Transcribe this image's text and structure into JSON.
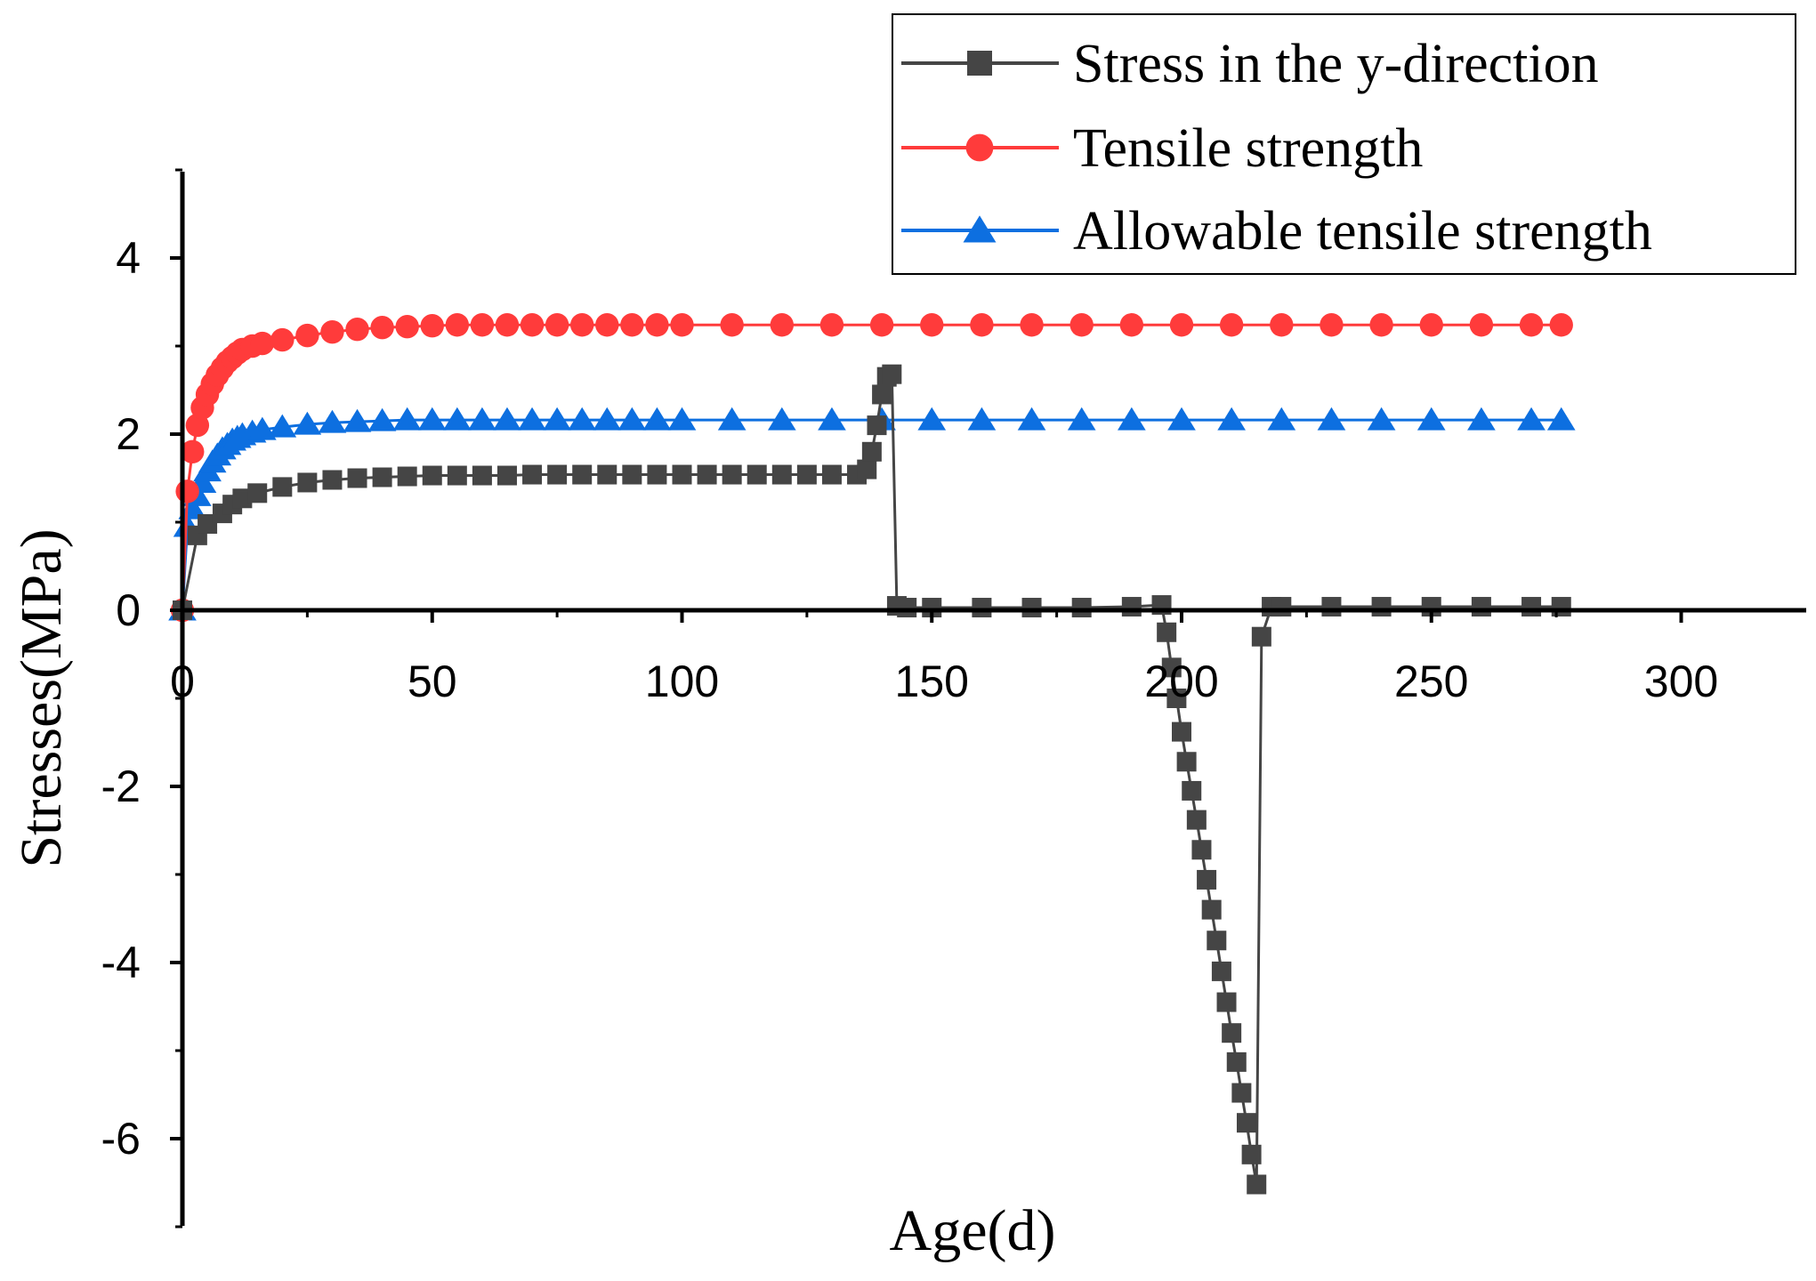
{
  "chart_data": {
    "type": "line",
    "title": "",
    "xlabel": "Age(d)",
    "ylabel": "Stresses(MPa)",
    "xlim": [
      0,
      325
    ],
    "ylim": [
      -7,
      5
    ],
    "xticks": [
      0,
      50,
      100,
      150,
      200,
      250,
      300
    ],
    "xtick_labels": [
      "0",
      "50",
      "100",
      "150",
      "200",
      "250",
      "300"
    ],
    "yticks": [
      -6,
      -4,
      -2,
      0,
      2,
      4
    ],
    "ytick_labels": [
      "-6",
      "-4",
      "-2",
      "0",
      "2",
      "4"
    ],
    "grid": false,
    "legend_position": "top-right",
    "series": [
      {
        "name": "Stress in the y-direction",
        "color": "#454545",
        "marker": "square",
        "x": [
          0,
          3,
          5,
          8,
          10,
          12,
          15,
          20,
          25,
          30,
          35,
          40,
          45,
          50,
          55,
          60,
          65,
          70,
          75,
          80,
          85,
          90,
          95,
          100,
          105,
          110,
          115,
          120,
          125,
          130,
          135,
          137,
          138,
          139,
          140,
          141,
          142,
          143,
          145,
          150,
          160,
          170,
          180,
          190,
          196,
          197,
          198,
          199,
          200,
          201,
          202,
          203,
          204,
          205,
          206,
          207,
          208,
          209,
          210,
          211,
          212,
          213,
          214,
          215,
          216,
          218,
          220,
          230,
          240,
          250,
          260,
          270,
          276
        ],
        "y": [
          0,
          0.85,
          0.98,
          1.1,
          1.2,
          1.27,
          1.33,
          1.4,
          1.45,
          1.48,
          1.5,
          1.51,
          1.52,
          1.53,
          1.53,
          1.53,
          1.53,
          1.54,
          1.54,
          1.54,
          1.54,
          1.54,
          1.54,
          1.54,
          1.54,
          1.54,
          1.54,
          1.54,
          1.54,
          1.54,
          1.54,
          1.6,
          1.8,
          2.1,
          2.45,
          2.65,
          2.68,
          0.05,
          0.03,
          0.03,
          0.03,
          0.03,
          0.03,
          0.04,
          0.06,
          -0.25,
          -0.65,
          -1.0,
          -1.38,
          -1.72,
          -2.05,
          -2.38,
          -2.72,
          -3.06,
          -3.4,
          -3.75,
          -4.1,
          -4.45,
          -4.8,
          -5.13,
          -5.48,
          -5.82,
          -6.18,
          -6.52,
          -0.3,
          0.04,
          0.04,
          0.04,
          0.04,
          0.04,
          0.04,
          0.04,
          0.04
        ]
      },
      {
        "name": "Tensile strength",
        "color": "#ff3b3b",
        "marker": "circle",
        "x": [
          0,
          1,
          2,
          3,
          4,
          5,
          6,
          7,
          8,
          9,
          10,
          11,
          12,
          14,
          16,
          20,
          25,
          30,
          35,
          40,
          45,
          50,
          55,
          60,
          65,
          70,
          75,
          80,
          85,
          90,
          95,
          100,
          110,
          120,
          130,
          140,
          150,
          160,
          170,
          180,
          190,
          200,
          210,
          220,
          230,
          240,
          250,
          260,
          270,
          276
        ],
        "y": [
          0,
          1.35,
          1.8,
          2.1,
          2.3,
          2.45,
          2.57,
          2.67,
          2.75,
          2.82,
          2.87,
          2.92,
          2.96,
          3.0,
          3.03,
          3.07,
          3.12,
          3.16,
          3.19,
          3.21,
          3.22,
          3.23,
          3.24,
          3.24,
          3.24,
          3.24,
          3.24,
          3.24,
          3.24,
          3.24,
          3.24,
          3.24,
          3.24,
          3.24,
          3.24,
          3.24,
          3.24,
          3.24,
          3.24,
          3.24,
          3.24,
          3.24,
          3.24,
          3.24,
          3.24,
          3.24,
          3.24,
          3.24,
          3.24,
          3.24
        ]
      },
      {
        "name": "Allowable tensile strength",
        "color": "#0d6fe0",
        "marker": "triangle",
        "x": [
          0,
          1,
          2,
          3,
          4,
          5,
          6,
          7,
          8,
          9,
          10,
          11,
          12,
          14,
          16,
          20,
          25,
          30,
          35,
          40,
          45,
          50,
          55,
          60,
          65,
          70,
          75,
          80,
          85,
          90,
          95,
          100,
          110,
          120,
          130,
          140,
          150,
          160,
          170,
          180,
          190,
          200,
          210,
          220,
          230,
          240,
          250,
          260,
          270,
          276
        ],
        "y": [
          0,
          0.95,
          1.15,
          1.3,
          1.45,
          1.58,
          1.68,
          1.76,
          1.83,
          1.88,
          1.93,
          1.96,
          1.99,
          2.02,
          2.05,
          2.08,
          2.11,
          2.13,
          2.14,
          2.15,
          2.16,
          2.16,
          2.16,
          2.16,
          2.16,
          2.16,
          2.16,
          2.16,
          2.16,
          2.16,
          2.16,
          2.16,
          2.16,
          2.16,
          2.16,
          2.16,
          2.16,
          2.16,
          2.16,
          2.16,
          2.16,
          2.16,
          2.16,
          2.16,
          2.16,
          2.16,
          2.16,
          2.16,
          2.16,
          2.16
        ]
      }
    ]
  }
}
